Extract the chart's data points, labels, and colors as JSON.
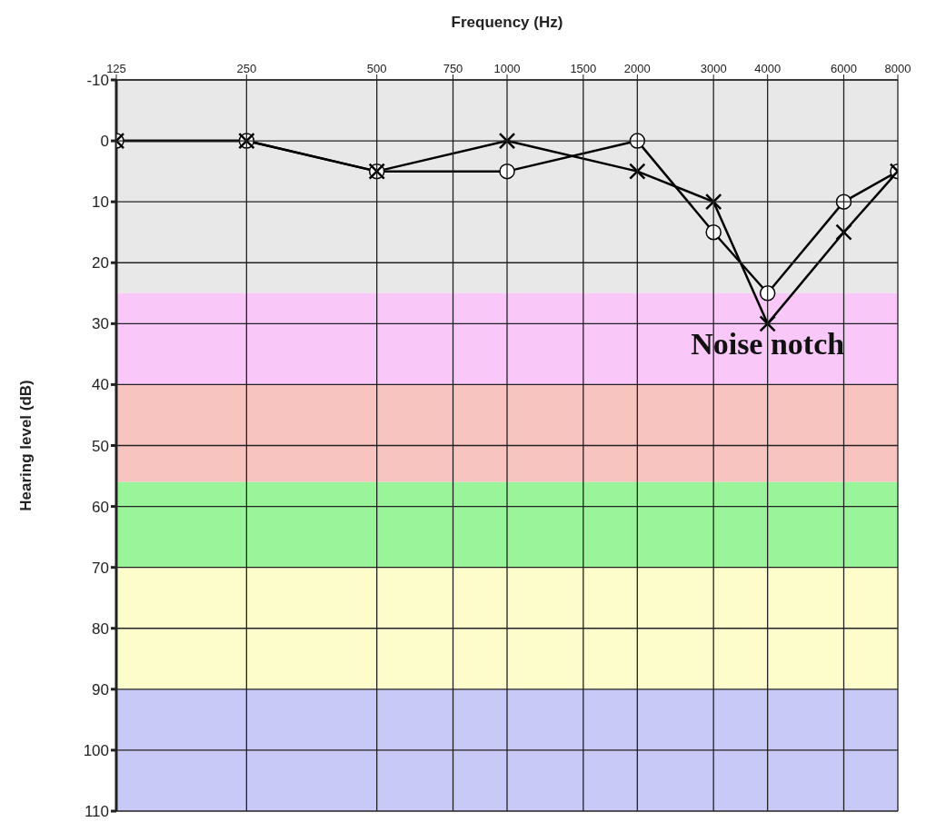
{
  "chart_data": {
    "type": "line",
    "xlabel": "Frequency (Hz)",
    "ylabel": "Hearing level (dB)",
    "log": "x",
    "xlim": [
      125,
      8000
    ],
    "xticks": [
      125,
      250,
      500,
      750,
      1000,
      1500,
      2000,
      3000,
      4000,
      6000,
      8000
    ],
    "ylim": [
      110,
      -10
    ],
    "yticks": [
      -10,
      0,
      10,
      20,
      30,
      40,
      50,
      60,
      70,
      80,
      90,
      100,
      110
    ],
    "grid": true,
    "series": [
      {
        "color": "#000000",
        "marker": "circle",
        "x": [
          125,
          250,
          500,
          1000,
          2000,
          3000,
          4000,
          6000,
          8000
        ],
        "values": [
          0,
          0,
          5,
          5,
          0,
          15,
          25,
          10,
          5
        ]
      },
      {
        "color": "#000000",
        "marker": "cross",
        "x": [
          125,
          250,
          500,
          1000,
          2000,
          3000,
          4000,
          6000,
          8000
        ],
        "values": [
          0,
          0,
          5,
          0,
          5,
          10,
          30,
          15,
          5
        ]
      }
    ],
    "bands": [
      {
        "axis": "y",
        "from": -10,
        "to": 25,
        "color": "#e8e8e8"
      },
      {
        "axis": "y",
        "from": 25,
        "to": 40,
        "color": "#f9c8f9"
      },
      {
        "axis": "y",
        "from": 40,
        "to": 56,
        "color": "#f8c4c0"
      },
      {
        "axis": "y",
        "from": 56,
        "to": 70,
        "color": "#9af59a"
      },
      {
        "axis": "y",
        "from": 70,
        "to": 90,
        "color": "#fdfdcc"
      },
      {
        "axis": "y",
        "from": 90,
        "to": 110,
        "color": "#c9c9f7"
      }
    ],
    "annotations": [
      {
        "text": "Noise notch",
        "x": 4000,
        "y": 30
      }
    ]
  }
}
